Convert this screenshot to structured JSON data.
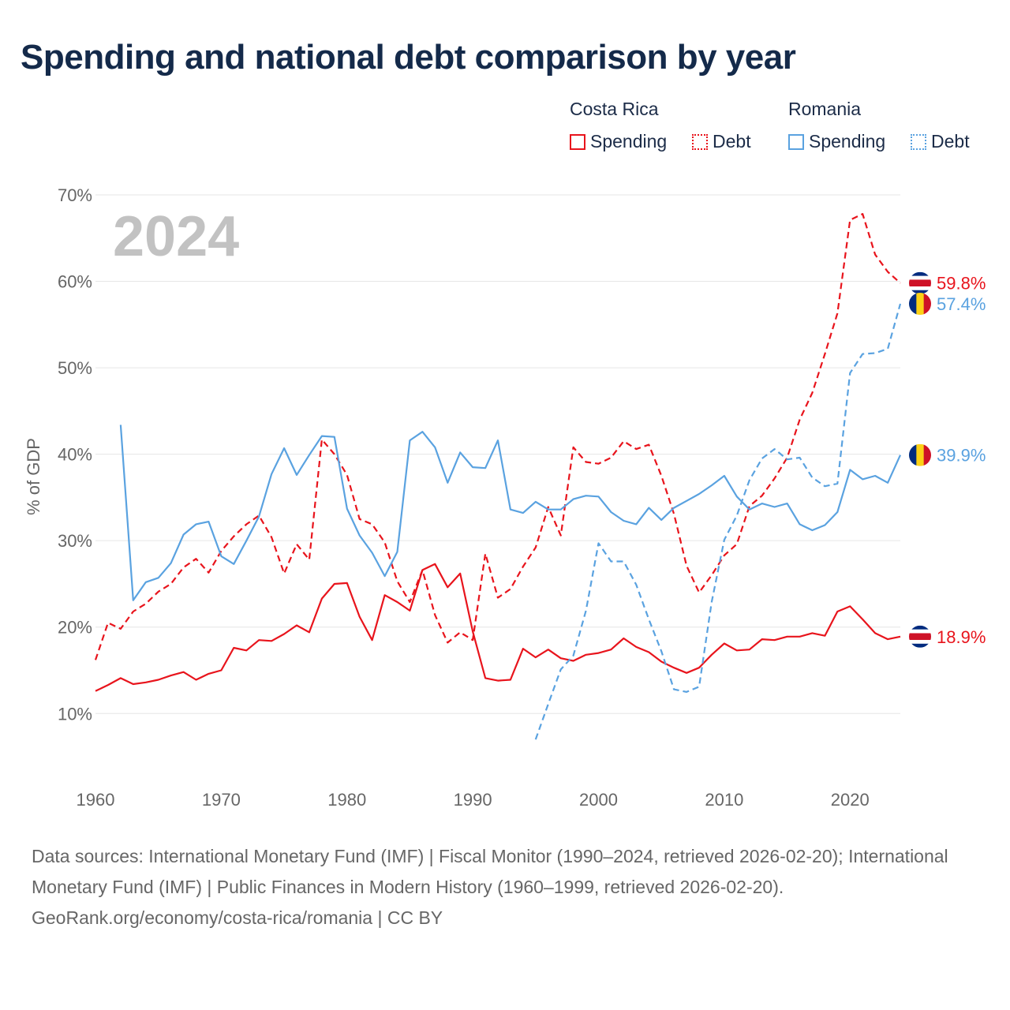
{
  "title": "Spending and national debt comparison by year",
  "legend": {
    "groups": [
      {
        "name": "Costa Rica",
        "color": "#e8141c",
        "items": [
          {
            "label": "Spending",
            "style": "solid"
          },
          {
            "label": "Debt",
            "style": "dotted"
          }
        ]
      },
      {
        "name": "Romania",
        "color": "#5aa2e0",
        "items": [
          {
            "label": "Spending",
            "style": "solid"
          },
          {
            "label": "Debt",
            "style": "dotted"
          }
        ]
      }
    ]
  },
  "year_label": "2024",
  "sources": "Data sources: International Monetary Fund (IMF) | Fiscal Monitor (1990–2024, retrieved 2026-02-20); International Monetary Fund (IMF) | Public Finances in Modern History (1960–1999, retrieved 2026-02-20).",
  "credit": "GeoRank.org/economy/costa-rica/romania | CC BY",
  "chart_data": {
    "type": "line",
    "ylabel": "% of GDP",
    "xlabel": "",
    "xlim": [
      1960,
      2024
    ],
    "ylim": [
      4,
      70
    ],
    "x_ticks": [
      1960,
      1970,
      1980,
      1990,
      2000,
      2010,
      2020
    ],
    "x_tick_labels": [
      "1960",
      "1970",
      "1980",
      "1990",
      "2000",
      "2010",
      "2020"
    ],
    "y_ticks": [
      10,
      20,
      30,
      40,
      50,
      60,
      70
    ],
    "y_tick_labels": [
      "10%",
      "20%",
      "30%",
      "40%",
      "50%",
      "60%",
      "70%"
    ],
    "grid": true,
    "series": [
      {
        "name": "Costa Rica Spending",
        "country": "Costa Rica",
        "color": "#e8141c",
        "dash": "solid",
        "start_year": 1960,
        "values": [
          12.6,
          13.3,
          14.1,
          13.4,
          13.6,
          13.9,
          14.4,
          14.8,
          13.9,
          14.6,
          15.0,
          17.6,
          17.3,
          18.5,
          18.4,
          19.2,
          20.2,
          19.4,
          23.3,
          25.0,
          25.1,
          21.2,
          18.5,
          23.7,
          22.9,
          21.9,
          26.6,
          27.3,
          24.6,
          26.2,
          19.5,
          14.1,
          13.8,
          13.9,
          17.5,
          16.5,
          17.4,
          16.4,
          16.1,
          16.8,
          17.0,
          17.4,
          18.7,
          17.7,
          17.1,
          16.0,
          15.3,
          14.7,
          15.3,
          16.8,
          18.1,
          17.3,
          17.4,
          18.6,
          18.5,
          18.9,
          18.9,
          19.3,
          19.0,
          21.8,
          22.4,
          20.9,
          19.3,
          18.6,
          18.9
        ],
        "end_label": "18.9%"
      },
      {
        "name": "Costa Rica Debt",
        "country": "Costa Rica",
        "color": "#e8141c",
        "dash": "dashed",
        "start_year": 1960,
        "values": [
          16.2,
          20.5,
          19.8,
          21.8,
          22.7,
          24.1,
          25.0,
          26.9,
          27.9,
          26.3,
          28.8,
          30.5,
          31.9,
          32.9,
          30.4,
          26.2,
          29.6,
          27.8,
          41.7,
          40.0,
          37.6,
          32.5,
          31.9,
          29.8,
          25.3,
          22.9,
          26.6,
          21.4,
          18.2,
          19.4,
          18.5,
          28.5,
          23.4,
          24.4,
          27.0,
          29.2,
          33.9,
          30.6,
          40.8,
          39.1,
          38.9,
          39.6,
          41.5,
          40.6,
          41.1,
          37.5,
          33.1,
          27.1,
          24.0,
          26.0,
          28.3,
          29.6,
          34.0,
          35.2,
          37.2,
          39.6,
          44.0,
          47.1,
          51.6,
          56.3,
          67.1,
          67.8,
          63.1,
          61.1,
          59.8
        ],
        "end_label": "59.8%"
      },
      {
        "name": "Romania Spending",
        "country": "Romania",
        "color": "#5aa2e0",
        "dash": "solid",
        "start_year": 1962,
        "values": [
          43.4,
          23.1,
          25.2,
          25.7,
          27.4,
          30.7,
          31.9,
          32.2,
          28.2,
          27.3,
          30.0,
          32.8,
          37.7,
          40.7,
          37.6,
          39.9,
          42.1,
          42.0,
          33.7,
          30.6,
          28.6,
          25.9,
          28.7,
          41.6,
          42.6,
          40.8,
          36.7,
          40.2,
          38.5,
          38.4,
          41.6,
          33.6,
          33.2,
          34.5,
          33.6,
          33.6,
          34.8,
          35.2,
          35.1,
          33.3,
          32.3,
          31.9,
          33.8,
          32.4,
          33.8,
          34.6,
          35.4,
          36.4,
          37.5,
          35.1,
          33.6,
          34.3,
          33.9,
          34.3,
          31.9,
          31.2,
          31.8,
          33.3,
          38.2,
          37.1,
          37.5,
          36.7,
          39.9
        ],
        "end_label": "39.9%"
      },
      {
        "name": "Romania Debt",
        "country": "Romania",
        "color": "#5aa2e0",
        "dash": "dashed",
        "start_year": 1995,
        "values": [
          7.0,
          11.1,
          15.1,
          16.7,
          21.9,
          29.7,
          27.6,
          27.6,
          24.9,
          20.9,
          17.2,
          12.8,
          12.5,
          13.1,
          22.9,
          30.1,
          32.9,
          37.0,
          39.5,
          40.6,
          39.4,
          39.6,
          37.3,
          36.3,
          36.6,
          49.4,
          51.6,
          51.7,
          52.2,
          57.4
        ],
        "end_label": "57.4%"
      }
    ]
  }
}
